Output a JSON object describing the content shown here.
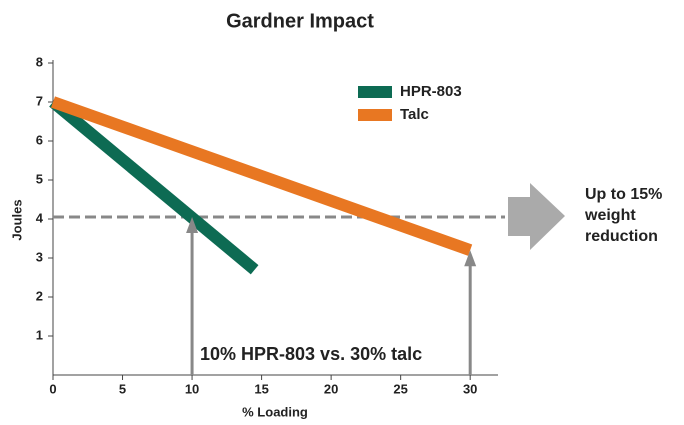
{
  "chart_data": {
    "type": "line",
    "title": "Gardner Impact",
    "x_label": "% Loading",
    "y_label": "Joules",
    "xlim": [
      0,
      32
    ],
    "xticks": [
      0,
      5,
      10,
      15,
      20,
      25,
      30
    ],
    "ylim": [
      0,
      8
    ],
    "yticks": [
      1,
      2,
      3,
      4,
      5,
      6,
      7,
      8
    ],
    "series": [
      {
        "name": "HPR-803",
        "color": "#0d6b53",
        "x": [
          0,
          14.5
        ],
        "values": [
          7,
          2.7
        ]
      },
      {
        "name": "Talc",
        "color": "#e87722",
        "x": [
          0,
          30
        ],
        "values": [
          7,
          3.2
        ]
      }
    ],
    "reference_line": 4.05,
    "arrows": [
      {
        "x": 10,
        "y": 4.05
      },
      {
        "x": 30,
        "y": 3.2
      }
    ],
    "annotation": "10% HPR-803 vs. 30% talc",
    "callout": [
      "Up to 15%",
      "weight",
      "reduction"
    ],
    "legend": "top-right"
  }
}
